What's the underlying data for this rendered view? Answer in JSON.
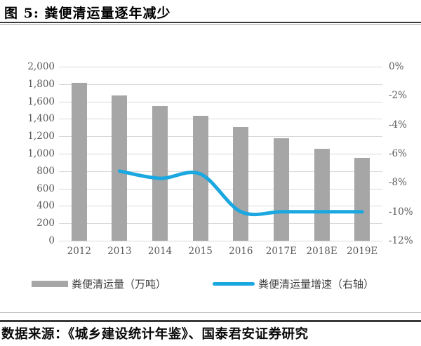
{
  "figure": {
    "title": "图 5:  粪便清运量逐年减少"
  },
  "source": {
    "label": "数据来源：《城乡建设统计年鉴》、国泰君安证券研究"
  },
  "colors": {
    "grid": "#d9d9d9",
    "tick_text": "#595959",
    "bar": "#a6a6a6",
    "line": "#1ba7e0"
  },
  "chart_data": {
    "type": "bar+line",
    "title": "粪便清运量逐年减少",
    "categories": [
      "2012",
      "2013",
      "2014",
      "2015",
      "2016",
      "2017E",
      "2018E",
      "2019E"
    ],
    "series": [
      {
        "name": "粪便清运量（万吨）",
        "type": "bar",
        "axis": "left",
        "color": "#a6a6a6",
        "values": [
          1812,
          1672,
          1547,
          1437,
          1306,
          1175,
          1058,
          952
        ]
      },
      {
        "name": "粪便清运量增速（右轴）",
        "type": "line",
        "axis": "right",
        "color": "#1ba7e0",
        "values": [
          null,
          -7.2,
          -7.7,
          -7.4,
          -10,
          -10,
          -10,
          -10
        ]
      }
    ],
    "left_axis": {
      "min": 0,
      "max": 2000,
      "step": 200,
      "tick_labels": [
        "2,000",
        "1,800",
        "1,600",
        "1,400",
        "1,200",
        "1,000",
        "800",
        "600",
        "400",
        "200",
        "0"
      ]
    },
    "right_axis": {
      "min": -12,
      "max": 0,
      "step": 2,
      "tick_labels": [
        "0%",
        "-2%",
        "-4%",
        "-6%",
        "-8%",
        "-10%",
        "-12%"
      ]
    },
    "grid": true,
    "legend_position": "bottom"
  }
}
